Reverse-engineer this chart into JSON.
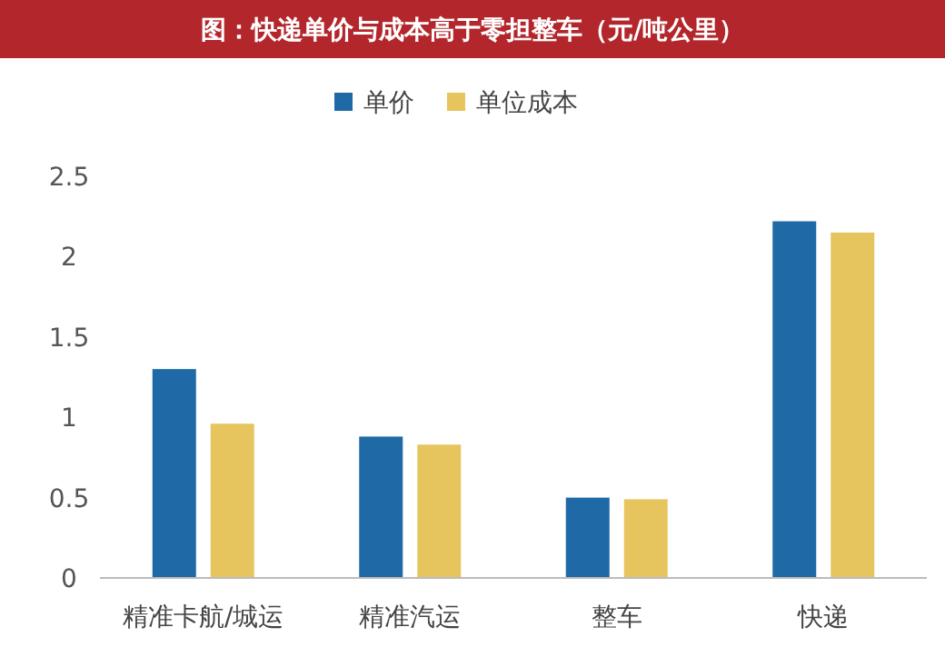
{
  "chart_data": {
    "type": "bar",
    "title": "图：快递单价与成本高于零担整车（元/吨公里）",
    "categories": [
      "精准卡航/城运",
      "精准汽运",
      "整车",
      "快递"
    ],
    "series": [
      {
        "name": "单价",
        "color": "#1f6aa6",
        "values": [
          1.3,
          0.88,
          0.5,
          2.22
        ]
      },
      {
        "name": "单位成本",
        "color": "#e6c55e",
        "values": [
          0.96,
          0.83,
          0.49,
          2.15
        ]
      }
    ],
    "ylim": [
      0,
      2.5
    ],
    "yticks": [
      0,
      0.5,
      1,
      1.5,
      2,
      2.5
    ],
    "legend": "top",
    "grid": false
  }
}
